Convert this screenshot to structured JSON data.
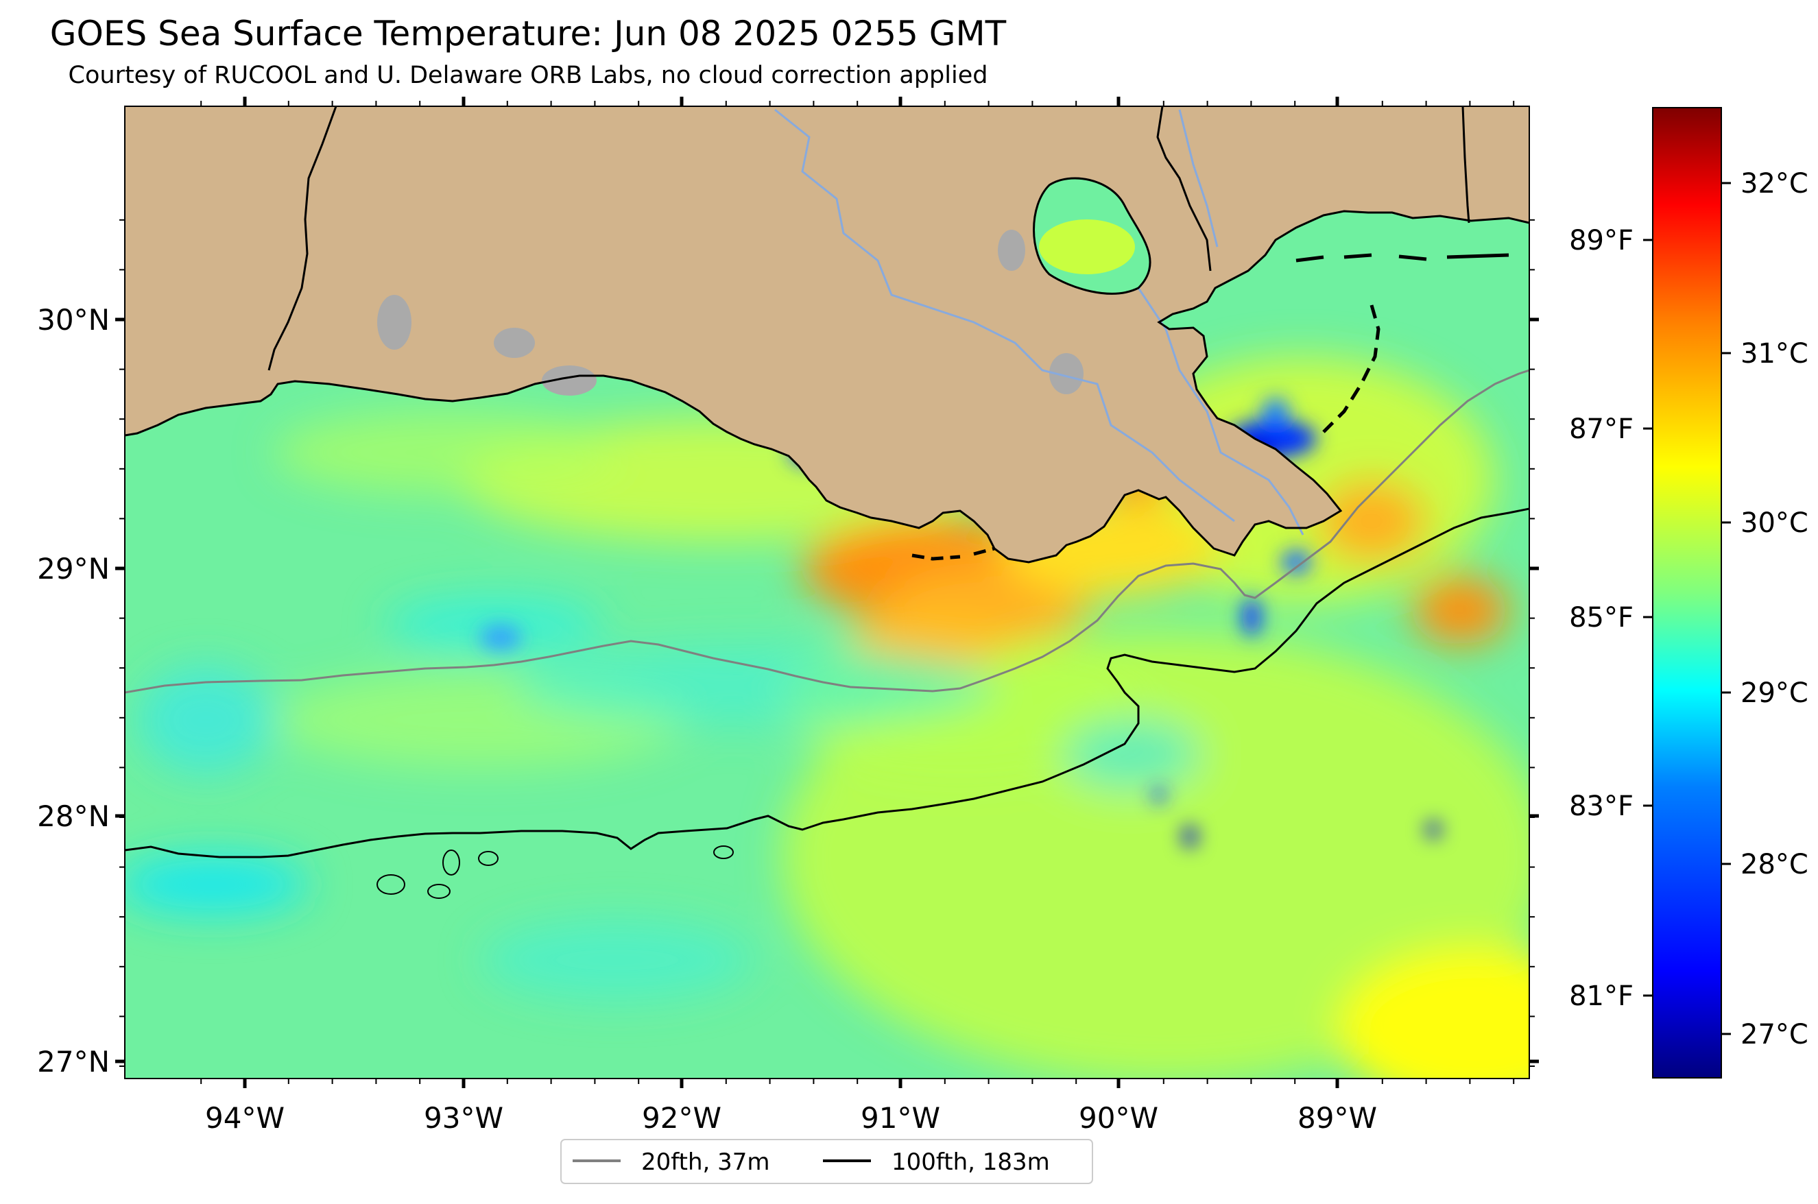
{
  "title": "GOES Sea Surface Temperature: Jun 08 2025 0255 GMT",
  "subtitle": "Courtesy of RUCOOL and U. Delaware ORB Labs, no cloud correction applied",
  "longitude_labels": [
    "94°W",
    "93°W",
    "92°W",
    "91°W",
    "90°W",
    "89°W"
  ],
  "latitude_labels": [
    "30°N",
    "29°N",
    "28°N",
    "27°N"
  ],
  "colorbar": {
    "celsius_labels": [
      "32°C",
      "31°C",
      "30°C",
      "29°C",
      "28°C",
      "27°C"
    ],
    "fahrenheit_labels": [
      "89°F",
      "87°F",
      "85°F",
      "83°F",
      "81°F"
    ],
    "colormap": [
      "#00007f",
      "#0000ff",
      "#007fff",
      "#00ffff",
      "#7fff7f",
      "#ffff00",
      "#ff7f00",
      "#ff0000",
      "#7f0000"
    ]
  },
  "legend": [
    {
      "label": "20fth, 37m",
      "color": "#808080"
    },
    {
      "label": "100fth, 183m",
      "color": "#000000"
    }
  ],
  "colors": {
    "land": "#d2b48c",
    "ocean_base": "#80ff90",
    "river": "#88aadd",
    "lake": "#aaaaaa"
  }
}
